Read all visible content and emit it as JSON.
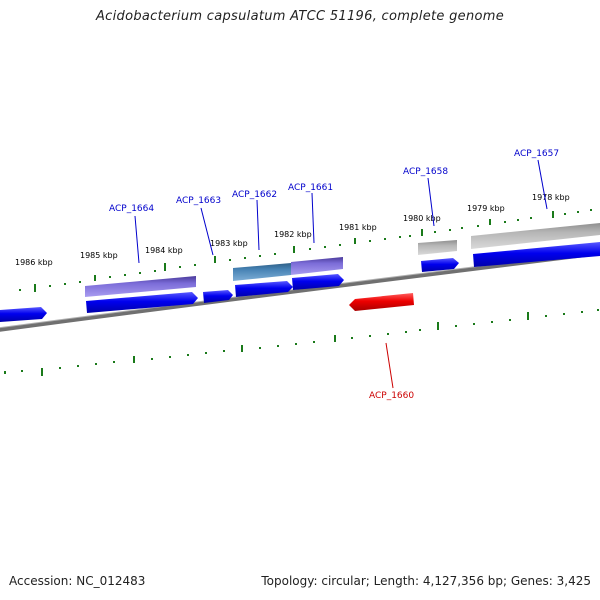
{
  "title": "Acidobacterium capsulatum ATCC 51196, complete genome",
  "footer": {
    "accession": "Accession: NC_012483",
    "summary": "Topology: circular; Length: 4,127,356 bp; Genes: 3,425"
  },
  "colors": {
    "backbone": "#808080",
    "ticks": "#1a7a1a",
    "cds_forward": "#0000ee",
    "cds_reverse_highlight": "#ee0000",
    "feature_purple": "#6a5acd",
    "feature_steelblue": "#4682b4",
    "feature_gray": "#b0b0b0",
    "label_blue": "#0000cc",
    "label_red": "#cc0000"
  },
  "scale_labels": [
    "1986 kbp",
    "1985 kbp",
    "1984 kbp",
    "1983 kbp",
    "1982 kbp",
    "1981 kbp",
    "1980 kbp",
    "1979 kbp",
    "1978 kbp"
  ],
  "gene_labels": [
    {
      "id": "ACP_1664",
      "color": "blue"
    },
    {
      "id": "ACP_1663",
      "color": "blue"
    },
    {
      "id": "ACP_1662",
      "color": "blue"
    },
    {
      "id": "ACP_1661",
      "color": "blue"
    },
    {
      "id": "ACP_1658",
      "color": "blue"
    },
    {
      "id": "ACP_1657",
      "color": "blue"
    },
    {
      "id": "ACP_1660",
      "color": "red"
    }
  ]
}
